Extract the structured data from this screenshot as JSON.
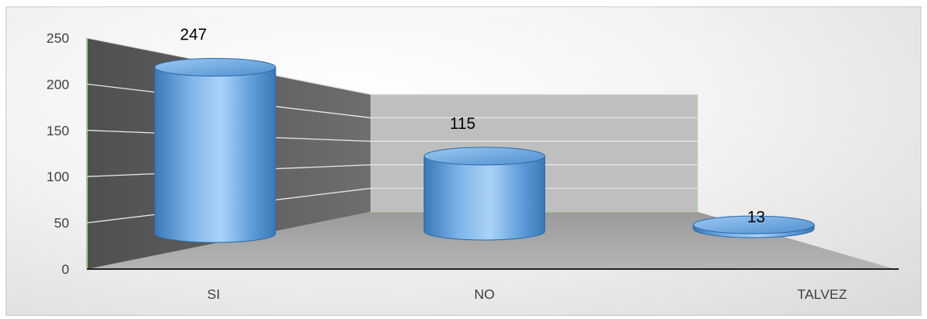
{
  "chart_data": {
    "type": "bar",
    "style": "3d-cylinder",
    "title": "",
    "xlabel": "",
    "ylabel": "",
    "categories": [
      "SI",
      "NO",
      "TALVEZ"
    ],
    "values": [
      247,
      115,
      13
    ],
    "data_labels": [
      "247",
      "115",
      "13"
    ],
    "y_ticks": [
      "0",
      "50",
      "100",
      "150",
      "200",
      "250"
    ],
    "ylim": [
      0,
      250
    ],
    "grid": true,
    "legend": "none",
    "colors": {
      "bar": "#5b9bd5",
      "bar_dark": "#2e75b6",
      "back_wall": "#bfbfbf",
      "side_wall": "#595959",
      "floor": "#a6a6a6"
    }
  }
}
